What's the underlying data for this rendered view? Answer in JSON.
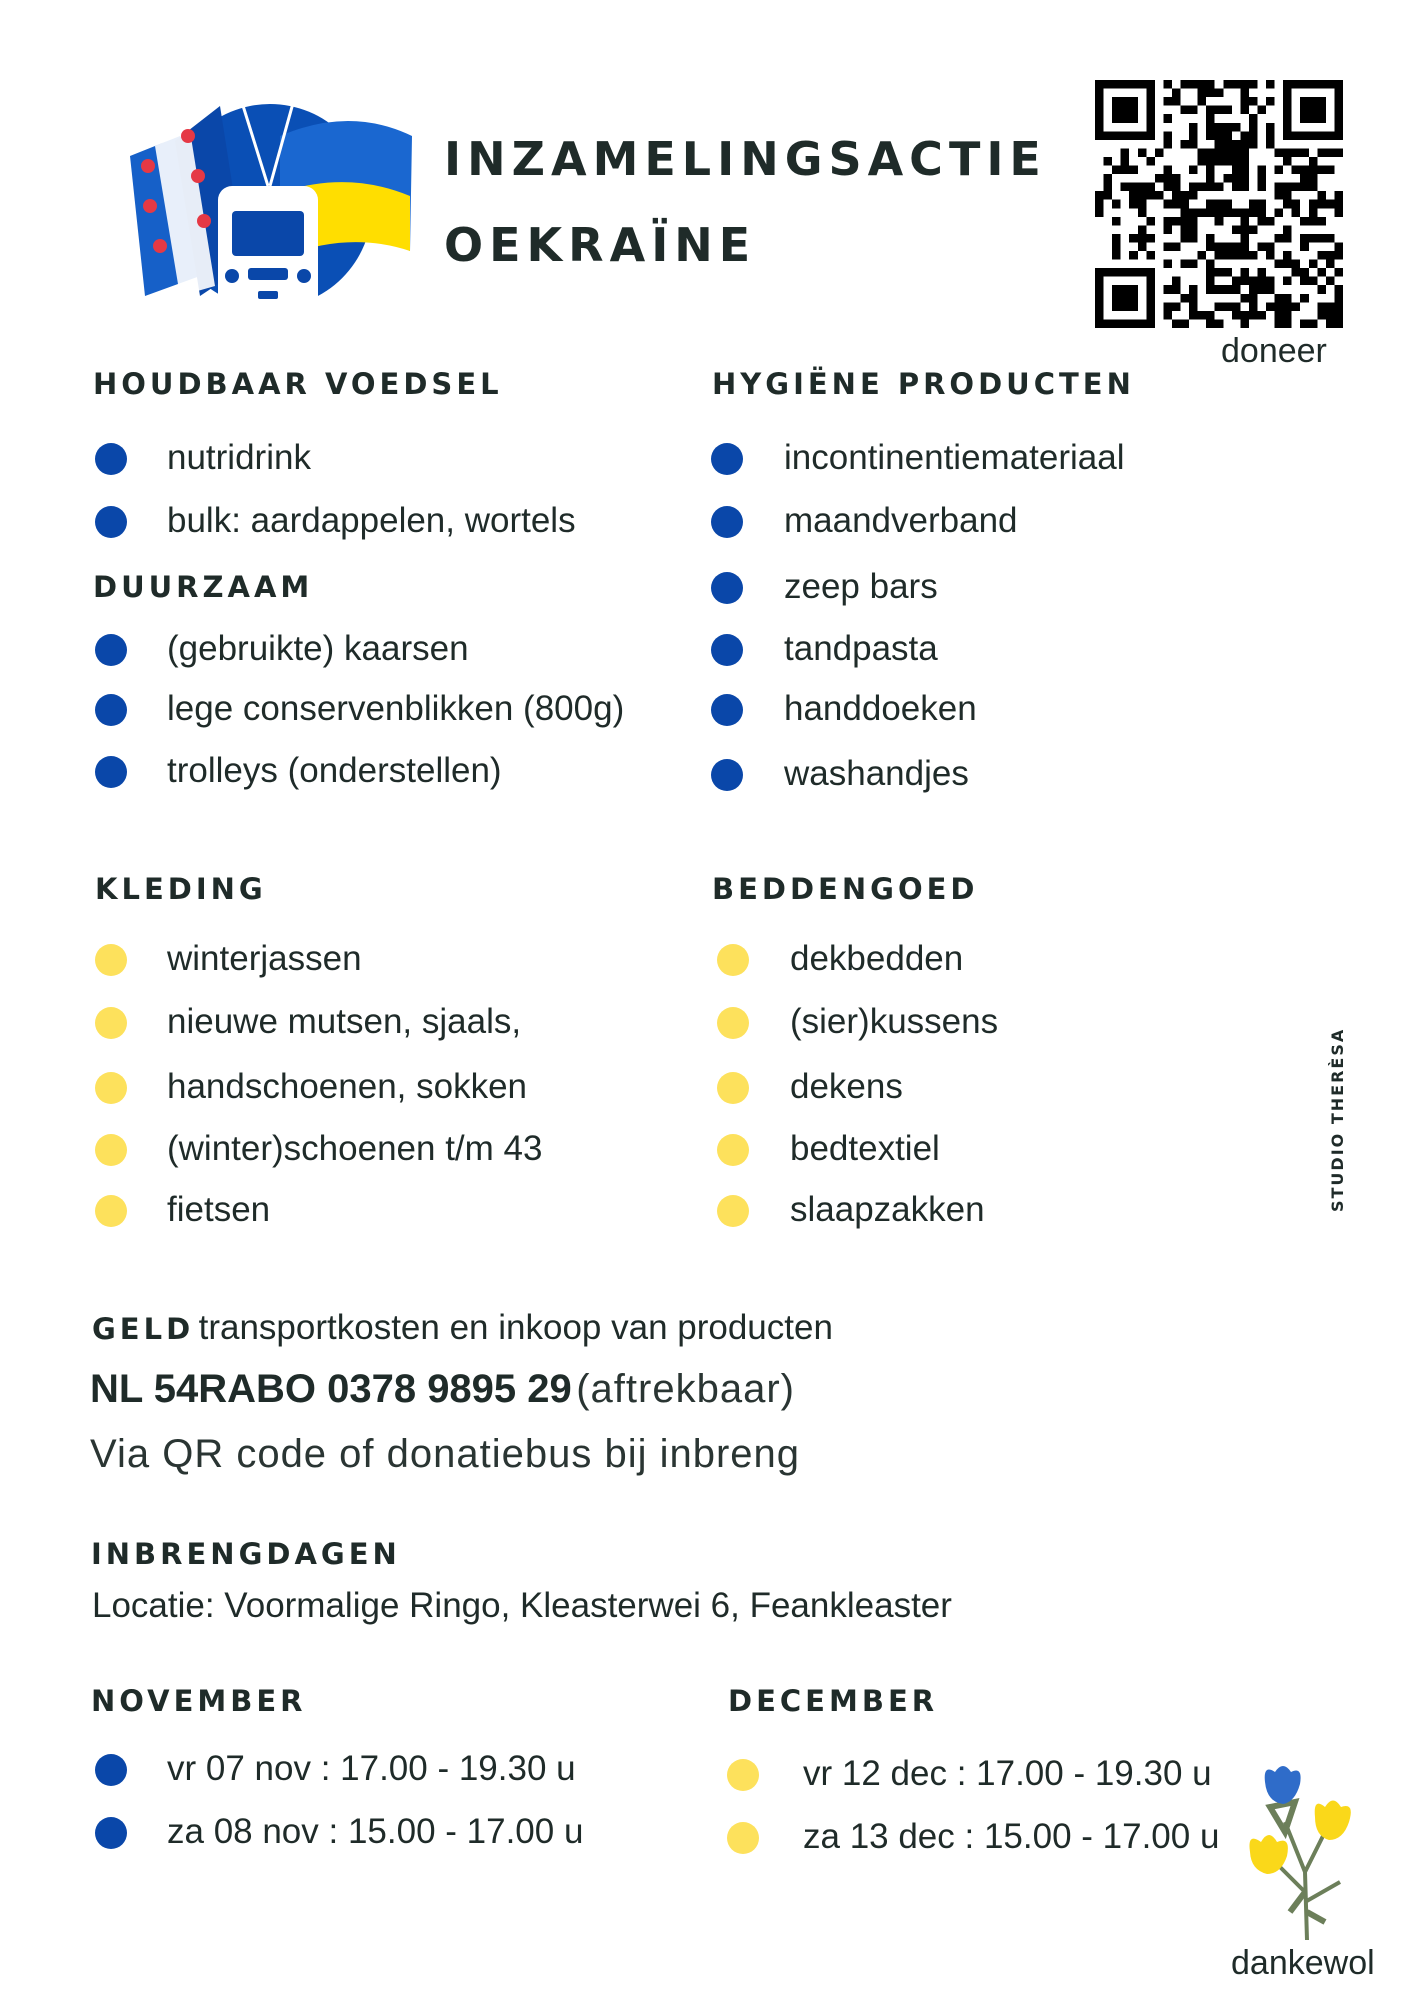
{
  "header": {
    "title_line1": "INZAMELINGSACTIE",
    "title_line2": "OEKRAÏNE",
    "qr_label": "doneer",
    "logo": "freight-truck-with-frisian-and-ukrainian-flags"
  },
  "colors": {
    "blue": "#0a47a9",
    "yellow": "#fde15c",
    "text": "#1f2b29"
  },
  "sections": {
    "houdbaar": {
      "heading": "HOUDBAAR VOEDSEL",
      "items": [
        "nutridrink",
        "bulk: aardappelen, wortels"
      ]
    },
    "duurzaam": {
      "heading": "DUURZAAM",
      "items": [
        "(gebruikte) kaarsen",
        "lege conservenblikken (800g)",
        "trolleys (onderstellen)"
      ]
    },
    "hygiene": {
      "heading": "HYGIËNE PRODUCTEN",
      "items": [
        "incontinentiemateriaal",
        "maandverband",
        "zeep bars",
        "tandpasta",
        "handdoeken",
        "washandjes"
      ]
    },
    "kleding": {
      "heading": "KLEDING",
      "items": [
        "winterjassen",
        "nieuwe mutsen, sjaals,",
        "handschoenen, sokken",
        "(winter)schoenen t/m 43",
        "fietsen"
      ]
    },
    "beddengoed": {
      "heading": "BEDDENGOED",
      "items": [
        "dekbedden",
        "(sier)kussens",
        "dekens",
        "bedtextiel",
        "slaapzakken"
      ]
    }
  },
  "geld": {
    "heading": "GELD",
    "description": "transportkosten en inkoop van producten",
    "iban": "NL 54RABO 0378 9895 29",
    "iban_note": "(aftrekbaar)",
    "via": "Via QR code of donatiebus bij inbreng"
  },
  "inbreng": {
    "heading": "INBRENGDAGEN",
    "location": "Locatie: Voormalige Ringo, Kleasterwei 6, Feankleaster"
  },
  "november": {
    "heading": "NOVEMBER",
    "items": [
      "vr 07 nov : 17.00 -  19.30 u",
      "za 08 nov : 15.00 - 17.00 u"
    ]
  },
  "december": {
    "heading": "DECEMBER",
    "items": [
      "vr 12 dec : 17.00 - 19.30 u",
      "za 13 dec : 15.00 - 17.00 u"
    ]
  },
  "credit": "STUDIO THERÈSA",
  "footer": {
    "thanks": "dankewol"
  }
}
